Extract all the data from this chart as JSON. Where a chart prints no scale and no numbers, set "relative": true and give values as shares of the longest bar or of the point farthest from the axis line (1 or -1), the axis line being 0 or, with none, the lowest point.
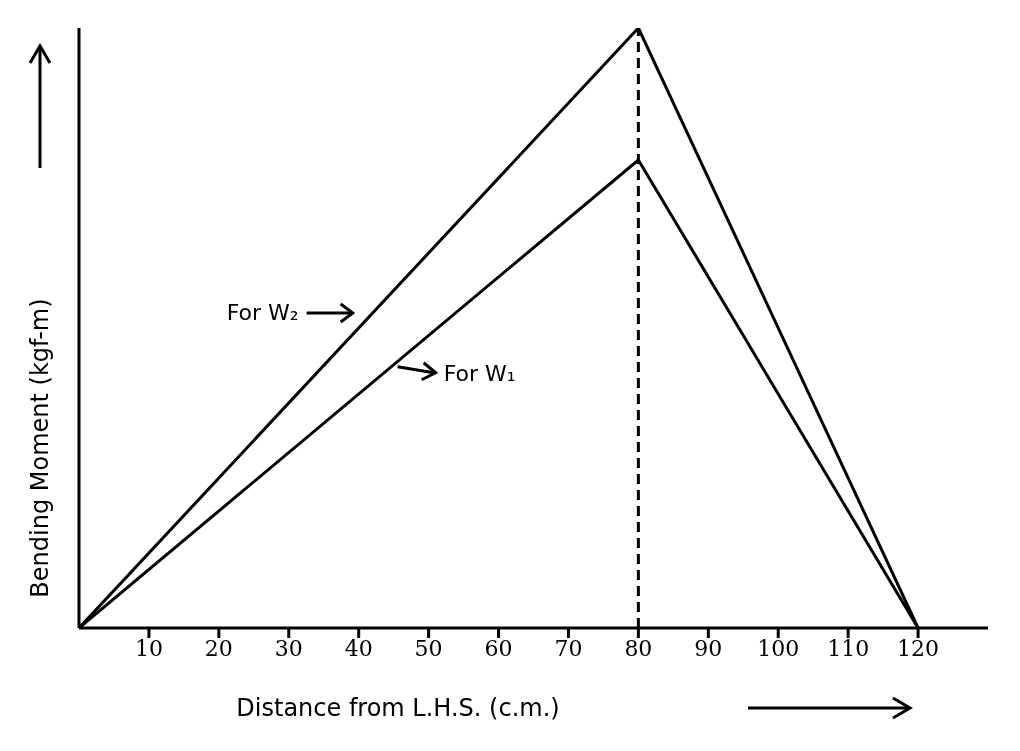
{
  "chart_data": {
    "type": "line",
    "xlabel": "Distance from L.H.S. (c.m.)",
    "ylabel": "Bending Moment (kgf-m)",
    "relative": true,
    "xlim": [
      0,
      130
    ],
    "xticks": [
      10,
      20,
      30,
      40,
      50,
      60,
      70,
      80,
      90,
      100,
      110,
      120
    ],
    "marker": "none",
    "line_style": "solid",
    "series": [
      {
        "name": "For W₂",
        "color": "#000000",
        "x": [
          0,
          80,
          120
        ],
        "values": [
          0,
          1,
          0
        ]
      },
      {
        "name": "For W₁",
        "color": "#000000",
        "x": [
          0,
          80,
          120
        ],
        "values": [
          0,
          0.78,
          0
        ]
      }
    ],
    "ref_lines": [
      {
        "axis": "x",
        "value": 80,
        "line_style": "dashed"
      }
    ]
  }
}
